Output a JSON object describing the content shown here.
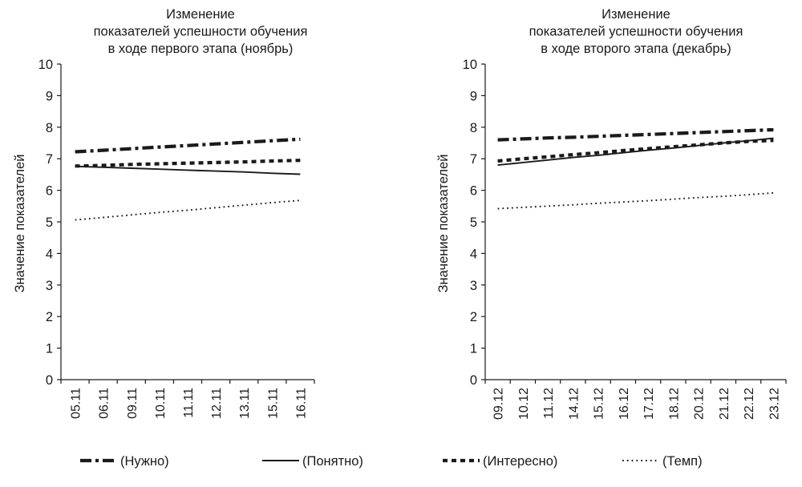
{
  "chart_data": [
    {
      "type": "line",
      "title": [
        "Изменение",
        "показателей успешности обучения",
        "в ходе первого этапа (ноябрь)"
      ],
      "ylabel": "Значение показателей",
      "xlabel": "",
      "ylim": [
        0,
        10
      ],
      "yticks": [
        "0",
        "1",
        "2",
        "3",
        "4",
        "5",
        "6",
        "7",
        "8",
        "9",
        "10"
      ],
      "grid": false,
      "categories": [
        "05.11",
        "06.11",
        "09.11",
        "10.11",
        "11.11",
        "12.11",
        "13.11",
        "15.11",
        "16.11"
      ],
      "series": [
        {
          "name": "(Нужно)",
          "values": [
            7.22,
            7.27,
            7.32,
            7.37,
            7.42,
            7.47,
            7.52,
            7.57,
            7.62
          ]
        },
        {
          "name": "(Понятно)",
          "values": [
            6.76,
            6.73,
            6.7,
            6.67,
            6.64,
            6.61,
            6.58,
            6.54,
            6.51
          ]
        },
        {
          "name": "(Интересно)",
          "values": [
            6.77,
            6.79,
            6.82,
            6.84,
            6.86,
            6.88,
            6.9,
            6.93,
            6.95
          ]
        },
        {
          "name": "(Темп)",
          "values": [
            5.06,
            5.14,
            5.22,
            5.3,
            5.37,
            5.45,
            5.53,
            5.61,
            5.68
          ]
        }
      ]
    },
    {
      "type": "line",
      "title": [
        "Изменение",
        "показателей успешности обучения",
        "в ходе второго этапа (декабрь)"
      ],
      "ylabel": "Значение показателей",
      "xlabel": "",
      "ylim": [
        0,
        10
      ],
      "yticks": [
        "0",
        "1",
        "2",
        "3",
        "4",
        "5",
        "6",
        "7",
        "8",
        "9",
        "10"
      ],
      "grid": false,
      "categories": [
        "09.12",
        "10.12",
        "11.12",
        "14.12",
        "15.12",
        "16.12",
        "17.12",
        "18.12",
        "20.12",
        "21.12",
        "22.12",
        "23.12"
      ],
      "series": [
        {
          "name": "(Нужно)",
          "values": [
            7.6,
            7.63,
            7.66,
            7.68,
            7.71,
            7.74,
            7.77,
            7.8,
            7.83,
            7.86,
            7.89,
            7.92
          ]
        },
        {
          "name": "(Понятно)",
          "values": [
            6.8,
            6.88,
            6.96,
            7.04,
            7.11,
            7.19,
            7.27,
            7.34,
            7.42,
            7.5,
            7.57,
            7.65
          ]
        },
        {
          "name": "(Интересно)",
          "values": [
            6.93,
            7.0,
            7.06,
            7.13,
            7.19,
            7.26,
            7.32,
            7.38,
            7.44,
            7.5,
            7.55,
            7.58
          ]
        },
        {
          "name": "(Темп)",
          "values": [
            5.42,
            5.46,
            5.5,
            5.54,
            5.59,
            5.63,
            5.67,
            5.72,
            5.77,
            5.81,
            5.86,
            5.92
          ]
        }
      ]
    }
  ],
  "legend": {
    "placement": "bottom",
    "items": [
      {
        "label": "(Нужно)",
        "style": "dash-dot-thick"
      },
      {
        "label": "(Понятно)",
        "style": "solid"
      },
      {
        "label": "(Интересно)",
        "style": "dashed-thick"
      },
      {
        "label": "(Темп)",
        "style": "dotted"
      }
    ]
  },
  "colors": {
    "ink": "#1a1a1a",
    "background": "#ffffff"
  }
}
